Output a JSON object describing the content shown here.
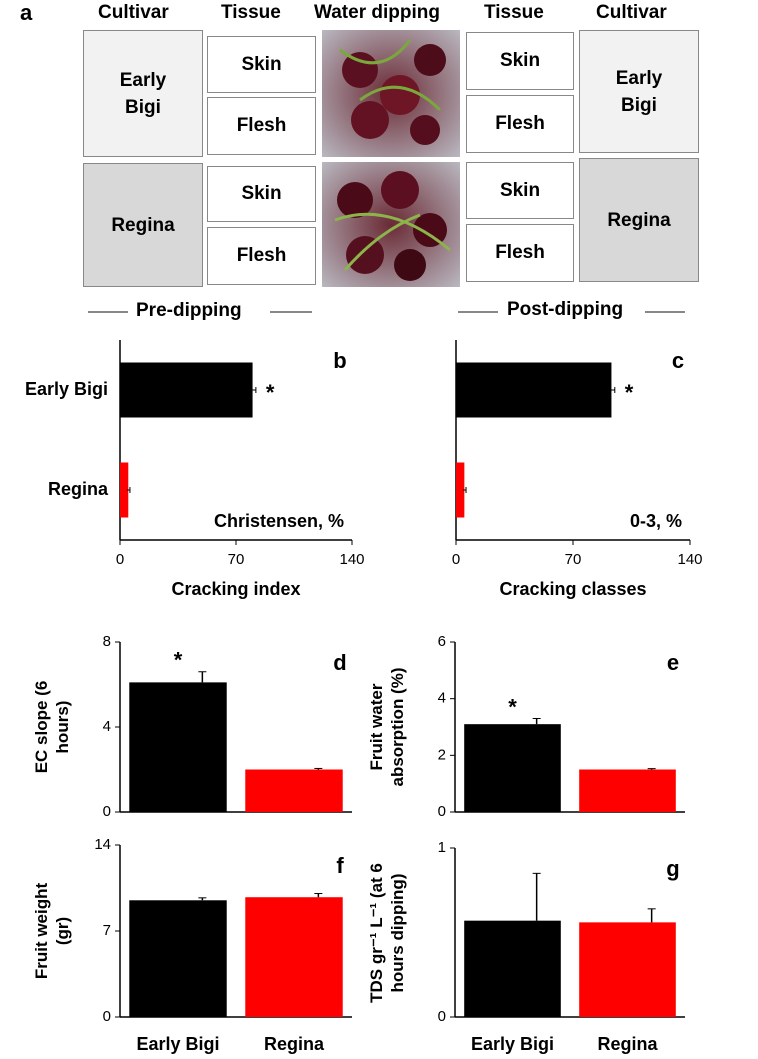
{
  "diagram": {
    "panel": "a",
    "headers": [
      "Cultivar",
      "Tissue",
      "Water dipping",
      "Tissue",
      "Cultivar"
    ],
    "cultivars": [
      "Early Bigi",
      "Regina"
    ],
    "tissues": [
      "Skin",
      "Flesh"
    ],
    "pre": "Pre-dipping",
    "post": "Post-dipping"
  },
  "chart_data": [
    {
      "type": "bar",
      "panel": "b",
      "orientation": "horizontal",
      "categories": [
        "Early Bigi",
        "Regina"
      ],
      "values": [
        80,
        5
      ],
      "errors": [
        2,
        1
      ],
      "significance": [
        "*",
        null
      ],
      "colors": [
        "#000000",
        "#ff0000"
      ],
      "xlim": [
        0,
        140
      ],
      "xticks": [
        0,
        70,
        140
      ],
      "xlabel": "Cracking index",
      "annotation": "Christensen, %"
    },
    {
      "type": "bar",
      "panel": "c",
      "orientation": "horizontal",
      "categories": [
        null,
        null
      ],
      "values": [
        93,
        5
      ],
      "errors": [
        2,
        1
      ],
      "significance": [
        "*",
        null
      ],
      "colors": [
        "#000000",
        "#ff0000"
      ],
      "xlim": [
        0,
        140
      ],
      "xticks": [
        0,
        70,
        140
      ],
      "xlabel": "Cracking classes",
      "annotation": "0-3, %"
    },
    {
      "type": "bar",
      "panel": "d",
      "orientation": "vertical",
      "categories": [
        null,
        null
      ],
      "values": [
        6.1,
        2.0
      ],
      "errors": [
        0.5,
        0.05
      ],
      "significance": [
        "*",
        null
      ],
      "colors": [
        "#000000",
        "#ff0000"
      ],
      "ylim": [
        0,
        8
      ],
      "yticks": [
        0,
        4,
        8
      ],
      "ylabel": "EC slope (6 hours)"
    },
    {
      "type": "bar",
      "panel": "e",
      "orientation": "vertical",
      "categories": [
        null,
        null
      ],
      "values": [
        3.1,
        1.5
      ],
      "errors": [
        0.2,
        0.03
      ],
      "significance": [
        "*",
        null
      ],
      "colors": [
        "#000000",
        "#ff0000"
      ],
      "ylim": [
        0,
        6
      ],
      "yticks": [
        0,
        2,
        4,
        6
      ],
      "ylabel": "Fruit water absorption (%)"
    },
    {
      "type": "bar",
      "panel": "f",
      "orientation": "vertical",
      "categories": [
        "Early Bigi",
        "Regina"
      ],
      "values": [
        9.5,
        9.75
      ],
      "errors": [
        0.2,
        0.3
      ],
      "colors": [
        "#000000",
        "#ff0000"
      ],
      "ylim": [
        0,
        14
      ],
      "yticks": [
        0,
        7,
        14
      ],
      "ylabel": "Fruit weight (gr)"
    },
    {
      "type": "bar",
      "panel": "g",
      "orientation": "vertical",
      "categories": [
        "Early Bigi",
        "Regina"
      ],
      "values": [
        0.57,
        0.56
      ],
      "errors": [
        0.28,
        0.08
      ],
      "colors": [
        "#000000",
        "#ff0000"
      ],
      "ylim": [
        0,
        1
      ],
      "yticks": [
        0,
        1
      ],
      "ylabel": "TDS gr⁻¹ L⁻¹ (at 6 hours dipping)"
    }
  ]
}
